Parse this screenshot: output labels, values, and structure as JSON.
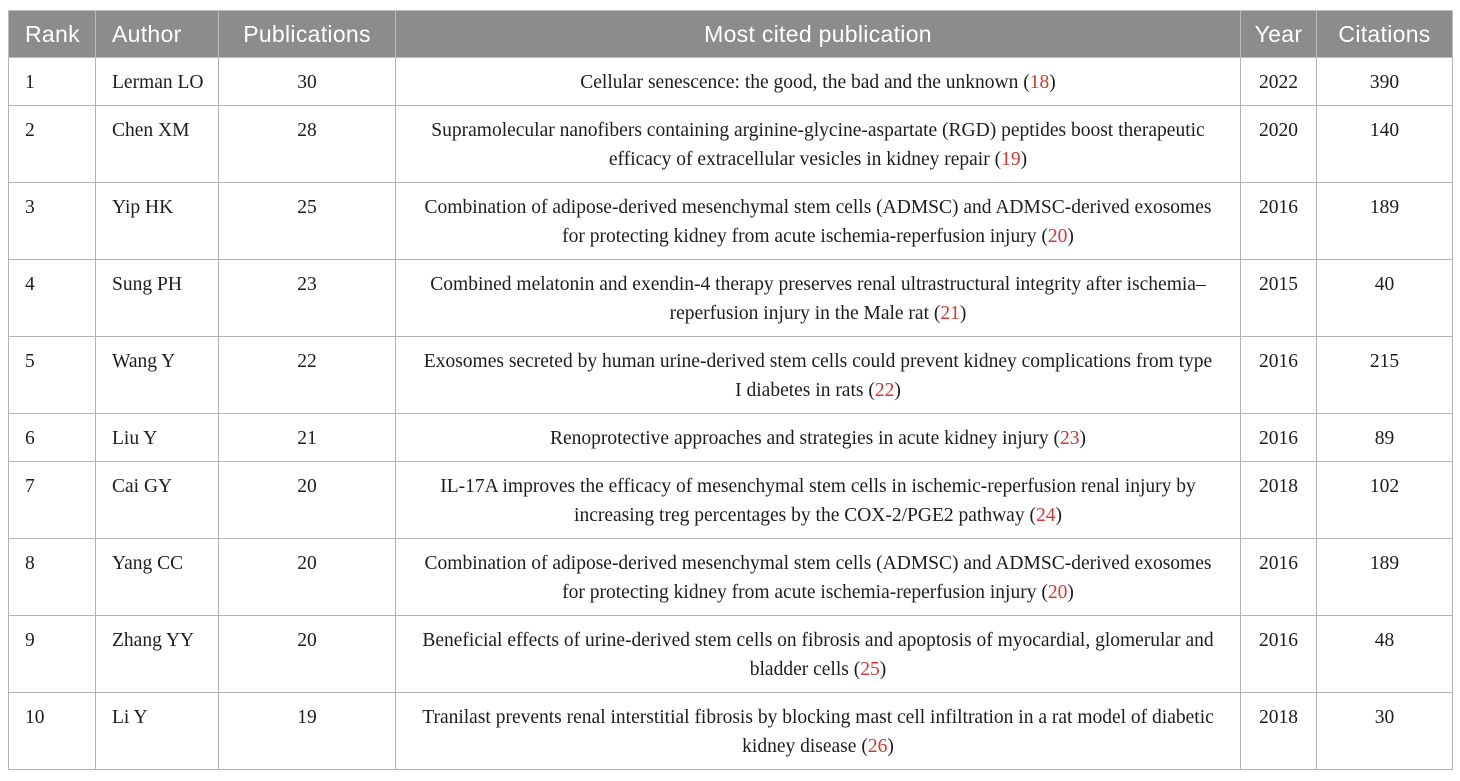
{
  "table": {
    "columns": [
      {
        "key": "rank",
        "label": "Rank"
      },
      {
        "key": "author",
        "label": "Author"
      },
      {
        "key": "publications",
        "label": "Publications"
      },
      {
        "key": "publication",
        "label": "Most cited publication"
      },
      {
        "key": "year",
        "label": "Year"
      },
      {
        "key": "citations",
        "label": "Citations"
      }
    ],
    "ref_format": {
      "open": " (",
      "close": ")"
    },
    "rows": [
      {
        "rank": "1",
        "author": "Lerman LO",
        "publications": "30",
        "title": "Cellular senescence: the good, the bad and the unknown",
        "ref": "18",
        "year": "2022",
        "citations": "390"
      },
      {
        "rank": "2",
        "author": "Chen XM",
        "publications": "28",
        "title": "Supramolecular nanofibers containing arginine-glycine-aspartate (RGD) peptides boost therapeutic efficacy of extracellular vesicles in kidney repair",
        "ref": "19",
        "year": "2020",
        "citations": "140"
      },
      {
        "rank": "3",
        "author": "Yip HK",
        "publications": "25",
        "title": "Combination of adipose-derived mesenchymal stem cells (ADMSC) and ADMSC-derived exosomes for protecting kidney from acute ischemia-reperfusion injury",
        "ref": "20",
        "year": "2016",
        "citations": "189"
      },
      {
        "rank": "4",
        "author": "Sung PH",
        "publications": "23",
        "title": "Combined melatonin and exendin-4 therapy preserves renal ultrastructural integrity after ischemia–reperfusion injury in the Male rat",
        "ref": "21",
        "year": "2015",
        "citations": "40"
      },
      {
        "rank": "5",
        "author": "Wang Y",
        "publications": "22",
        "title": "Exosomes secreted by human urine-derived stem cells could prevent kidney complications from type I diabetes in rats",
        "ref": "22",
        "year": "2016",
        "citations": "215"
      },
      {
        "rank": "6",
        "author": "Liu Y",
        "publications": "21",
        "title": "Renoprotective approaches and strategies in acute kidney injury",
        "ref": "23",
        "year": "2016",
        "citations": "89"
      },
      {
        "rank": "7",
        "author": "Cai GY",
        "publications": "20",
        "title": "IL-17A improves the efficacy of mesenchymal stem cells in ischemic-reperfusion renal injury by increasing treg percentages by the COX-2/PGE2 pathway",
        "ref": "24",
        "year": "2018",
        "citations": "102"
      },
      {
        "rank": "8",
        "author": "Yang CC",
        "publications": "20",
        "title": "Combination of adipose-derived mesenchymal stem cells (ADMSC) and ADMSC-derived exosomes for protecting kidney from acute ischemia-reperfusion injury",
        "ref": "20",
        "year": "2016",
        "citations": "189"
      },
      {
        "rank": "9",
        "author": "Zhang YY",
        "publications": "20",
        "title": "Beneficial effects of urine-derived stem cells on fibrosis and apoptosis of myocardial, glomerular and bladder cells",
        "ref": "25",
        "year": "2016",
        "citations": "48"
      },
      {
        "rank": "10",
        "author": "Li Y",
        "publications": "19",
        "title": "Tranilast prevents renal interstitial fibrosis by blocking mast cell infiltration in a rat model of diabetic kidney disease",
        "ref": "26",
        "year": "2018",
        "citations": "30"
      }
    ]
  },
  "colors": {
    "header_bg": "#8c8c8c",
    "header_text": "#ffffff",
    "reference_red": "#d6372e",
    "border": "#b4b4b4",
    "body_text": "#1d1d1d"
  }
}
